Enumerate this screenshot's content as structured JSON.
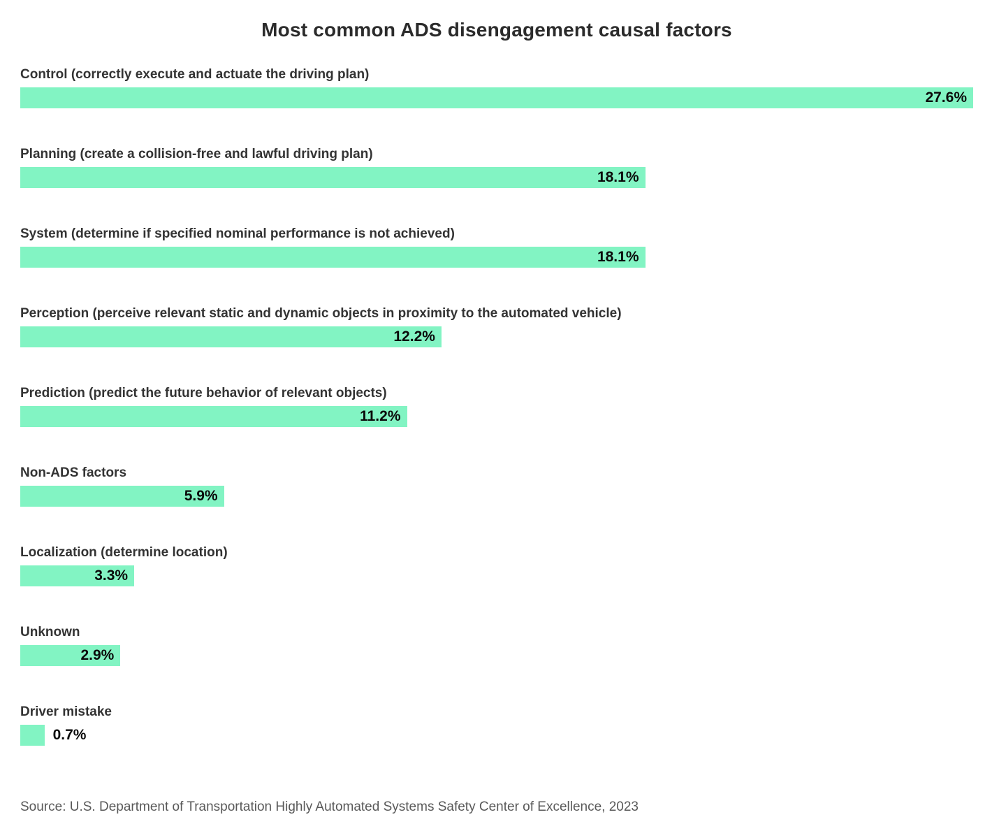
{
  "chart_data": {
    "type": "bar",
    "orientation": "horizontal",
    "title": "Most common ADS disengagement causal factors",
    "categories": [
      "Control (correctly execute and actuate the driving plan)",
      "Planning (create a collision-free and lawful driving plan)",
      "System (determine if specified nominal performance is not achieved)",
      "Perception (perceive relevant static and dynamic objects in proximity to the automated vehicle)",
      "Prediction (predict the future behavior of relevant objects)",
      "Non-ADS factors",
      "Localization (determine location)",
      "Unknown",
      "Driver mistake"
    ],
    "values": [
      27.6,
      18.1,
      18.1,
      12.2,
      11.2,
      5.9,
      3.3,
      2.9,
      0.7
    ],
    "value_labels": [
      "27.6%",
      "18.1%",
      "18.1%",
      "12.2%",
      "11.2%",
      "5.9%",
      "3.3%",
      "2.9%",
      "0.7%"
    ],
    "xlim": [
      0,
      27.6
    ],
    "grid": false,
    "legend": "none",
    "bar_color": "#82f4c3",
    "source": "Source: U.S. Department of Transportation Highly Automated Systems Safety Center of Excellence, 2023"
  },
  "colors": {
    "background": "#ffffff",
    "bar": "#82f4c3",
    "title_text": "#2b2b2b",
    "category_text": "#333333",
    "value_text": "#0a0a0a",
    "source_text": "#595959"
  }
}
